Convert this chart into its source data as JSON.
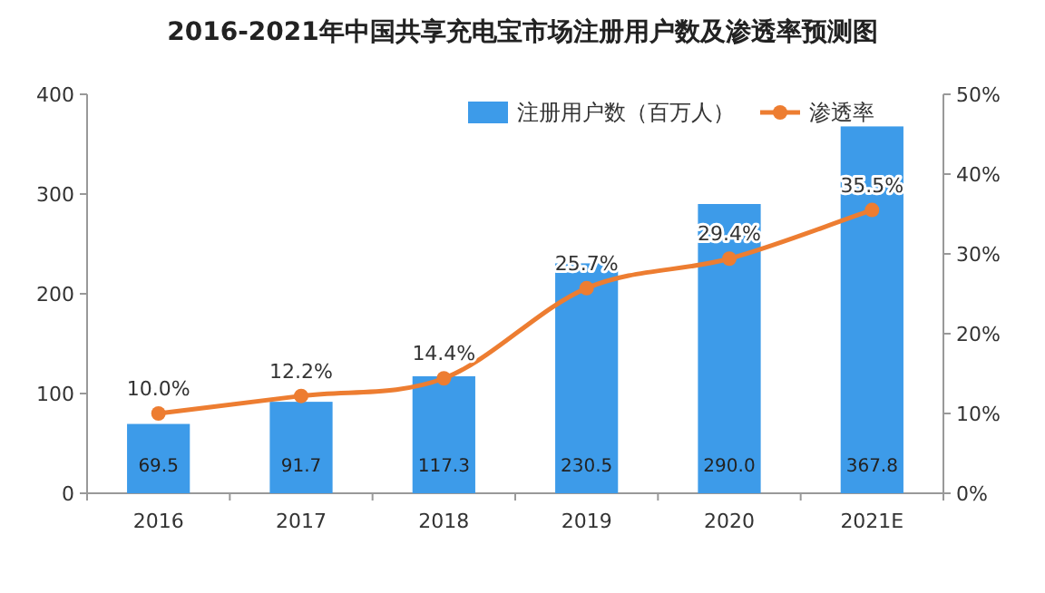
{
  "chart_data": {
    "type": "bar",
    "title": "2016-2021年中国共享充电宝市场注册用户数及渗透率预测图",
    "categories": [
      "2016",
      "2017",
      "2018",
      "2019",
      "2020",
      "2021E"
    ],
    "series": [
      {
        "name": "注册用户数（百万人）",
        "color": "#3d9be9",
        "values": [
          69.5,
          91.7,
          117.3,
          230.5,
          290.0,
          367.8
        ],
        "value_labels": [
          "69.5",
          "91.7",
          "117.3",
          "230.5",
          "290.0",
          "367.8"
        ]
      },
      {
        "name": "渗透率",
        "type": "line",
        "axis": "y2",
        "color": "#ed7d31",
        "marker": "circle",
        "values": [
          10.0,
          12.2,
          14.4,
          25.7,
          29.4,
          35.5
        ],
        "value_labels": [
          "10.0%",
          "12.2%",
          "14.4%",
          "25.7%",
          "29.4%",
          "35.5%"
        ]
      }
    ],
    "ylim": [
      0,
      400
    ],
    "yticks": [
      0,
      100,
      200,
      300,
      400
    ],
    "y2lim": [
      0,
      50
    ],
    "y2ticks": [
      {
        "value": 0,
        "label": "0%"
      },
      {
        "value": 10,
        "label": "10%"
      },
      {
        "value": 20,
        "label": "20%"
      },
      {
        "value": 30,
        "label": "30%"
      },
      {
        "value": 40,
        "label": "40%"
      },
      {
        "value": 50,
        "label": "50%"
      }
    ],
    "legend": "top",
    "grid": false
  }
}
